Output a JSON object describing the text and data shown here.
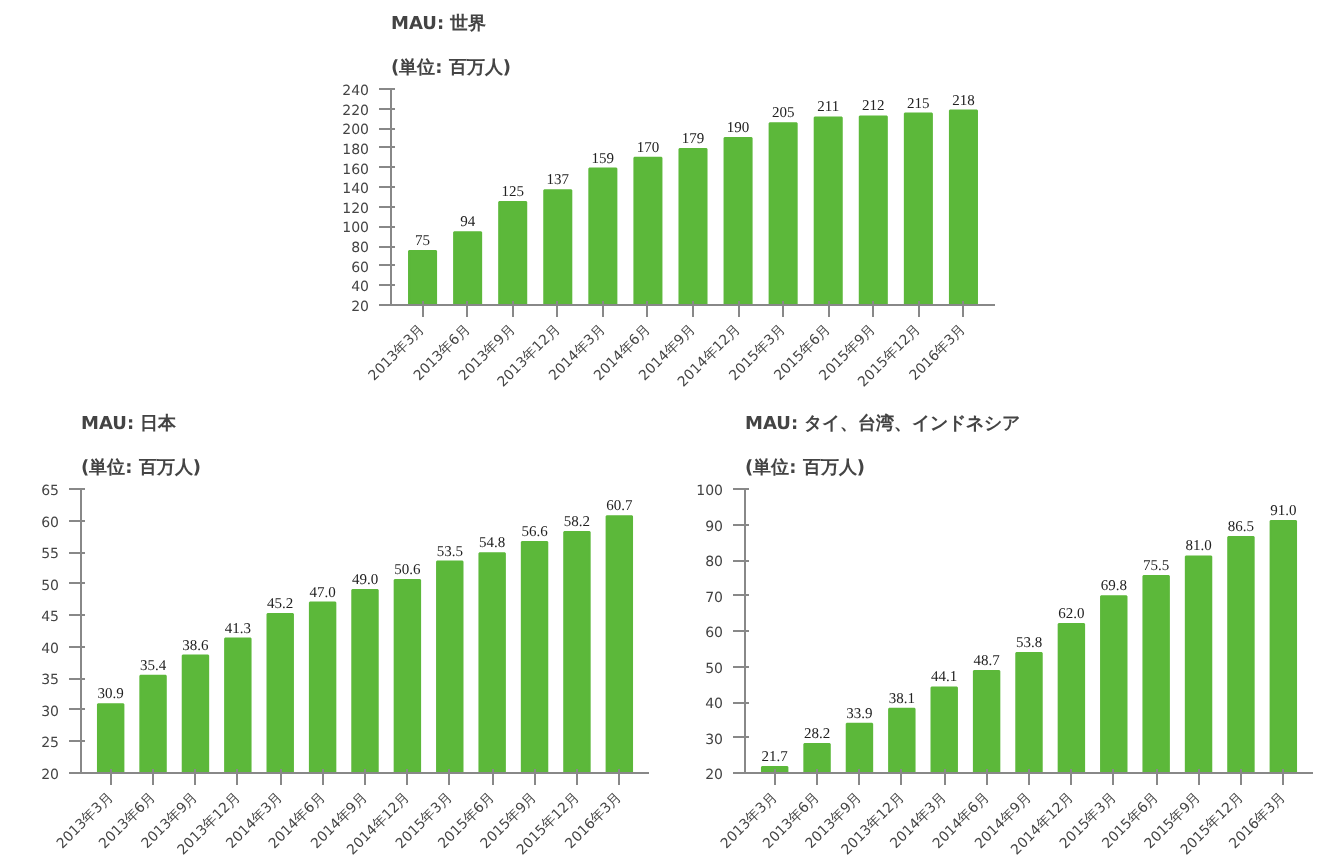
{
  "chart_data": [
    {
      "type": "bar",
      "title": "MAU: 世界",
      "subtitle": "(単位: 百万人)",
      "categories": [
        "2013年3月",
        "2013年6月",
        "2013年9月",
        "2013年12月",
        "2014年3月",
        "2014年6月",
        "2014年9月",
        "2014年12月",
        "2015年3月",
        "2015年6月",
        "2015年9月",
        "2015年12月",
        "2016年3月"
      ],
      "values": [
        75,
        94,
        125,
        137,
        159,
        170,
        179,
        190,
        205,
        211,
        212,
        215,
        218
      ],
      "color": "#5cb83a",
      "ylim": [
        20,
        240
      ],
      "yticks": [
        20,
        40,
        60,
        80,
        100,
        120,
        140,
        160,
        180,
        200,
        220,
        240
      ],
      "data_labels": true,
      "grid": false
    },
    {
      "type": "bar",
      "title": "MAU: 日本",
      "subtitle": "(単位: 百万人)",
      "categories": [
        "2013年3月",
        "2013年6月",
        "2013年9月",
        "2013年12月",
        "2014年3月",
        "2014年6月",
        "2014年9月",
        "2014年12月",
        "2015年3月",
        "2015年6月",
        "2015年9月",
        "2015年12月",
        "2016年3月"
      ],
      "values": [
        30.9,
        35.4,
        38.6,
        41.3,
        45.2,
        47.0,
        49.0,
        50.6,
        53.5,
        54.8,
        56.6,
        58.2,
        60.7
      ],
      "value_labels": [
        "30.9",
        "35.4",
        "38.6",
        "41.3",
        "45.2",
        "47.0",
        "49.0",
        "50.6",
        "53.5",
        "54.8",
        "56.6",
        "58.2",
        "60.7"
      ],
      "color": "#5cb83a",
      "ylim": [
        20,
        65
      ],
      "yticks": [
        20,
        25,
        30,
        35,
        40,
        45,
        50,
        55,
        60,
        65
      ],
      "grid": false
    },
    {
      "type": "bar",
      "title": "MAU: タイ、台湾、インドネシア",
      "subtitle": "(単位: 百万人)",
      "categories": [
        "2013年3月",
        "2013年6月",
        "2013年9月",
        "2013年12月",
        "2014年3月",
        "2014年6月",
        "2014年9月",
        "2014年12月",
        "2015年3月",
        "2015年6月",
        "2015年9月",
        "2015年12月",
        "2016年3月"
      ],
      "values": [
        21.7,
        28.2,
        33.9,
        38.1,
        44.1,
        48.7,
        53.8,
        62.0,
        69.8,
        75.5,
        81.0,
        86.5,
        91.0
      ],
      "value_labels": [
        "21.7",
        "28.2",
        "33.9",
        "38.1",
        "44.1",
        "48.7",
        "53.8",
        "62.0",
        "69.8",
        "75.5",
        "81.0",
        "86.5",
        "91.0"
      ],
      "color": "#5cb83a",
      "ylim": [
        20,
        100
      ],
      "yticks": [
        20,
        30,
        40,
        50,
        60,
        70,
        80,
        90,
        100
      ],
      "grid": false
    }
  ]
}
